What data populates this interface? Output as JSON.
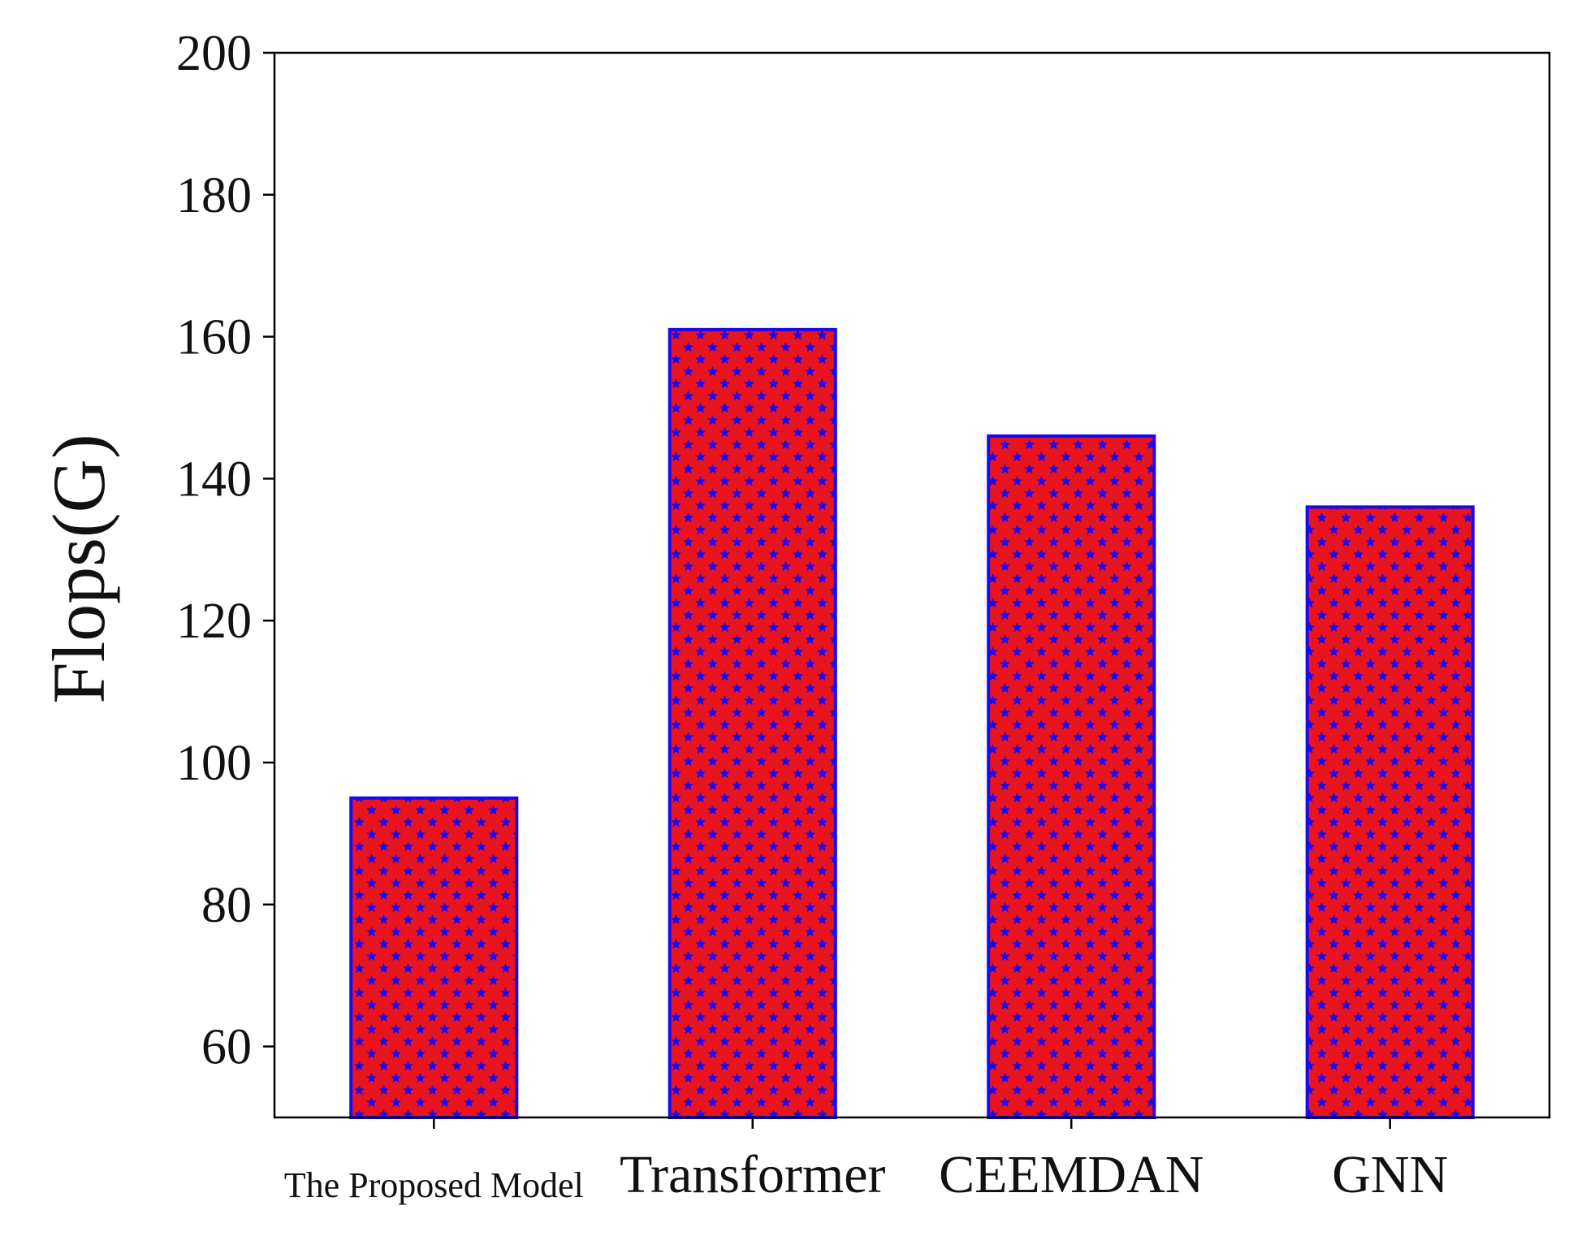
{
  "chart_data": {
    "type": "bar",
    "title": "",
    "xlabel": "",
    "ylabel": "Flops(G)",
    "categories": [
      "The Proposed Model",
      "Transformer",
      "CEEMDAN",
      "GNN"
    ],
    "values": [
      95,
      161,
      146,
      136
    ],
    "ylim": [
      50,
      200
    ],
    "yticks": [
      60,
      80,
      100,
      120,
      140,
      160,
      180,
      200
    ],
    "grid": false,
    "legend": "none",
    "bar_fill": "#e8141e",
    "bar_pattern_color": "#1a08f0",
    "bar_pattern": "star-hatch",
    "axis_color": "#000000"
  }
}
